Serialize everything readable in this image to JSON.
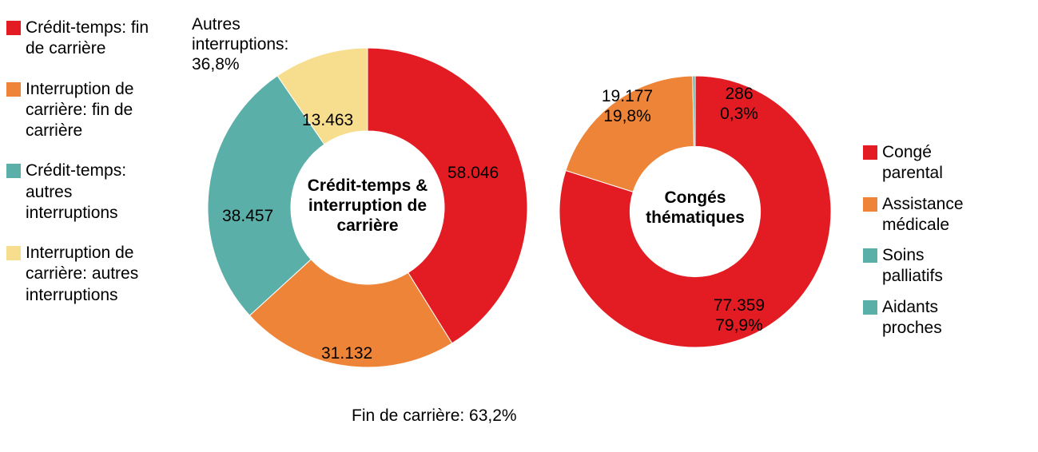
{
  "background_color": "#ffffff",
  "text_color": "#000000",
  "font_family": "Arial",
  "label_fontsize": 21,
  "center_fontsize": 21,
  "chart1": {
    "type": "donut",
    "center_title": "Crédit-temps & interruption de carrière",
    "inner_radius_ratio": 0.48,
    "slices": [
      {
        "id": "ct_fin",
        "label": "Crédit-temps: fin de carrière",
        "value": 58046,
        "value_label": "58.046",
        "color": "#e31c23"
      },
      {
        "id": "ic_fin",
        "label": "Interruption de carrière: fin de carrière",
        "value": 31132,
        "value_label": "31.132",
        "color": "#ee8437"
      },
      {
        "id": "ct_autr",
        "label": "Crédit-temps: autres interruptions",
        "value": 38457,
        "value_label": "38.457",
        "color": "#5bafa9"
      },
      {
        "id": "ic_autr",
        "label": "Interruption de carrière: autres interruptions",
        "value": 13463,
        "value_label": "13.463",
        "color": "#f7dd8e"
      }
    ],
    "group_annotations": [
      {
        "id": "fin_grp",
        "text": "Fin de carrière: 63,2%",
        "percent": 63.2
      },
      {
        "id": "autr_grp",
        "text": "Autres interruptions: 36,8%",
        "percent": 36.8
      }
    ]
  },
  "chart2": {
    "type": "donut",
    "center_title": "Congés thématiques",
    "inner_radius_ratio": 0.48,
    "slices": [
      {
        "id": "parental",
        "label": "Congé parental",
        "value": 77359,
        "value_label": "77.359",
        "percent_label": "79,9%",
        "color": "#e31c23"
      },
      {
        "id": "assistance",
        "label": "Assistance médicale",
        "value": 19177,
        "value_label": "19.177",
        "percent_label": "19,8%",
        "color": "#ee8437"
      },
      {
        "id": "palliatifs",
        "label": "Soins palliatifs",
        "value": 286,
        "value_label": "286",
        "percent_label": "0,3%",
        "color": "#5bafa9"
      },
      {
        "id": "aidants",
        "label": "Aidants proches",
        "value": 1,
        "value_label": "",
        "percent_label": "",
        "color": "#5bafa9"
      }
    ]
  },
  "legend_left": [
    {
      "color": "#e31c23",
      "text": "Crédit-temps: fin de carrière"
    },
    {
      "color": "#ee8437",
      "text": "Interruption de carrière: fin de carrière"
    },
    {
      "color": "#5bafa9",
      "text": "Crédit-temps: autres interruptions"
    },
    {
      "color": "#f7dd8e",
      "text": "Interruption de carrière: autres interruptions"
    }
  ],
  "legend_right": [
    {
      "color": "#e31c23",
      "text": "Congé parental"
    },
    {
      "color": "#ee8437",
      "text": "Assistance médicale"
    },
    {
      "color": "#5bafa9",
      "text": "Soins palliatifs"
    },
    {
      "color": "#5bafa9",
      "text": "Aidants proches"
    }
  ]
}
